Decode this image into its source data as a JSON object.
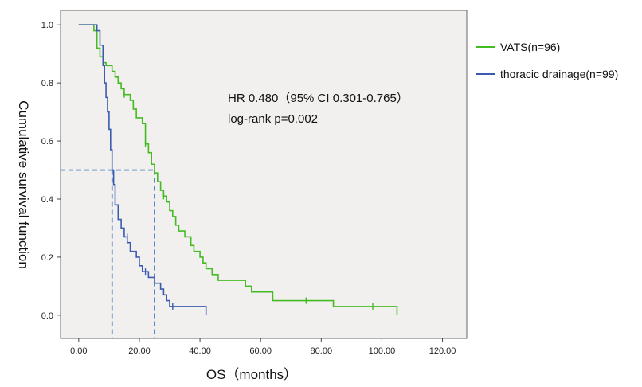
{
  "chart_data": {
    "type": "line",
    "title": "",
    "xlabel": "OS（months）",
    "ylabel": "Cumulative survival function",
    "xlim": [
      -6,
      128
    ],
    "ylim": [
      -0.08,
      1.05
    ],
    "xticks": [
      "0.00",
      "20.00",
      "40.00",
      "60.00",
      "80.00",
      "100.00",
      "120.00"
    ],
    "yticks": [
      "0.0",
      "0.2",
      "0.4",
      "0.6",
      "0.8",
      "1.0"
    ],
    "grid": false,
    "legend_position": "right, outside plot",
    "annotations": {
      "hr": "HR 0.480（95% CI 0.301-0.765）",
      "logrank": "log-rank p=0.002"
    },
    "median_reference": {
      "survival": 0.5,
      "vats_median_months": 25,
      "drainage_median_months": 11
    },
    "series": [
      {
        "name": "VATS(n=96)",
        "color": "#44bb22",
        "steps": [
          [
            0,
            1.0
          ],
          [
            5,
            0.98
          ],
          [
            6,
            0.92
          ],
          [
            7,
            0.89
          ],
          [
            8,
            0.87
          ],
          [
            9,
            0.86
          ],
          [
            11,
            0.84
          ],
          [
            12,
            0.82
          ],
          [
            13,
            0.8
          ],
          [
            14,
            0.78
          ],
          [
            15,
            0.76
          ],
          [
            17,
            0.74
          ],
          [
            18,
            0.71
          ],
          [
            19,
            0.68
          ],
          [
            21,
            0.66
          ],
          [
            22,
            0.59
          ],
          [
            23,
            0.56
          ],
          [
            24,
            0.52
          ],
          [
            25,
            0.49
          ],
          [
            26,
            0.46
          ],
          [
            27,
            0.43
          ],
          [
            28,
            0.41
          ],
          [
            29,
            0.39
          ],
          [
            30,
            0.36
          ],
          [
            31,
            0.34
          ],
          [
            32,
            0.31
          ],
          [
            33,
            0.29
          ],
          [
            35,
            0.27
          ],
          [
            37,
            0.24
          ],
          [
            38,
            0.22
          ],
          [
            40,
            0.2
          ],
          [
            41,
            0.18
          ],
          [
            42,
            0.16
          ],
          [
            44,
            0.14
          ],
          [
            46,
            0.12
          ],
          [
            55,
            0.1
          ],
          [
            57,
            0.08
          ],
          [
            64,
            0.05
          ],
          [
            84,
            0.03
          ],
          [
            105,
            0.0
          ]
        ],
        "censored": [
          [
            15,
            0.76
          ],
          [
            22,
            0.59
          ],
          [
            28,
            0.41
          ],
          [
            75,
            0.05
          ],
          [
            97,
            0.03
          ]
        ]
      },
      {
        "name": "thoracic drainage(n=99)",
        "color": "#3a5bb0",
        "steps": [
          [
            0,
            1.0
          ],
          [
            6,
            0.98
          ],
          [
            7,
            0.93
          ],
          [
            8,
            0.86
          ],
          [
            8.5,
            0.8
          ],
          [
            9,
            0.75
          ],
          [
            9.5,
            0.7
          ],
          [
            10,
            0.64
          ],
          [
            10.5,
            0.57
          ],
          [
            11,
            0.5
          ],
          [
            11.5,
            0.45
          ],
          [
            12,
            0.38
          ],
          [
            13,
            0.33
          ],
          [
            14,
            0.3
          ],
          [
            15,
            0.27
          ],
          [
            16,
            0.25
          ],
          [
            17,
            0.22
          ],
          [
            19,
            0.2
          ],
          [
            20,
            0.17
          ],
          [
            21,
            0.15
          ],
          [
            23,
            0.13
          ],
          [
            25,
            0.11
          ],
          [
            27,
            0.09
          ],
          [
            28,
            0.07
          ],
          [
            29,
            0.05
          ],
          [
            30,
            0.03
          ],
          [
            37,
            0.03
          ],
          [
            42,
            0.01
          ],
          [
            42,
            0.0
          ]
        ],
        "censored": [
          [
            16,
            0.27
          ],
          [
            22,
            0.15
          ],
          [
            31,
            0.03
          ]
        ]
      }
    ]
  }
}
